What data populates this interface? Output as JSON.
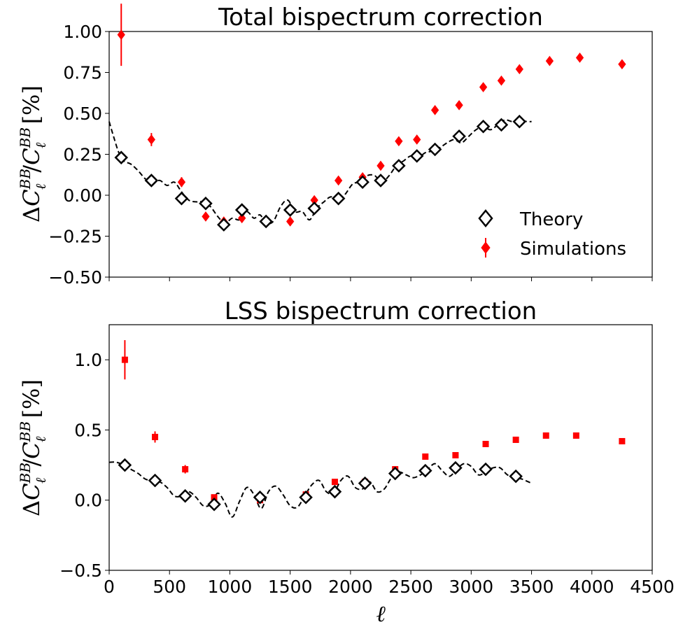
{
  "chart_data": [
    {
      "type": "scatter",
      "title": "Total bispectrum correction",
      "ylabel": "ΔC_ℓ^BB/C_ℓ^BB [%]",
      "xlabel": "",
      "xlim": [
        0,
        4500
      ],
      "ylim": [
        -0.5,
        1.0
      ],
      "xticks": [
        0,
        500,
        1000,
        1500,
        2000,
        2500,
        3000,
        3500,
        4000,
        4500
      ],
      "xtick_labels": [
        "",
        "",
        "",
        "",
        "",
        "",
        "",
        "",
        "",
        ""
      ],
      "yticks": [
        -0.5,
        -0.25,
        0.0,
        0.25,
        0.5,
        0.75,
        1.0
      ],
      "ytick_labels": [
        "−0.50",
        "−0.25",
        "0.00",
        "0.25",
        "0.50",
        "0.75",
        "1.00"
      ],
      "legend_position": "lower-right",
      "legend": [
        {
          "name": "Theory",
          "marker": "open-diamond"
        },
        {
          "name": "Simulations",
          "marker": "filled-diamond-errorbar"
        }
      ],
      "series": [
        {
          "name": "Theory",
          "x": [
            100,
            350,
            600,
            800,
            950,
            1100,
            1300,
            1500,
            1700,
            1900,
            2100,
            2250,
            2400,
            2550,
            2700,
            2900,
            3100,
            3250,
            3400
          ],
          "y": [
            0.23,
            0.09,
            -0.02,
            -0.05,
            -0.18,
            -0.09,
            -0.16,
            -0.09,
            -0.08,
            -0.02,
            0.08,
            0.09,
            0.18,
            0.24,
            0.28,
            0.36,
            0.42,
            0.43,
            0.45
          ]
        },
        {
          "name": "Simulations",
          "x": [
            100,
            350,
            600,
            800,
            950,
            1100,
            1300,
            1500,
            1700,
            1900,
            2100,
            2250,
            2400,
            2550,
            2700,
            2900,
            3100,
            3250,
            3400,
            3650,
            3900,
            4250
          ],
          "y": [
            0.98,
            0.34,
            0.08,
            -0.13,
            -0.16,
            -0.14,
            -0.16,
            -0.16,
            -0.03,
            0.09,
            0.11,
            0.18,
            0.33,
            0.34,
            0.52,
            0.55,
            0.66,
            0.7,
            0.77,
            0.82,
            0.84,
            0.8
          ],
          "yerr": [
            0.19,
            0.04,
            0.03,
            0.02,
            0.02,
            0.0,
            0.0,
            0.0,
            0.0,
            0.0,
            0.0,
            0.0,
            0.0,
            0.0,
            0.0,
            0.0,
            0.0,
            0.0,
            0.0,
            0.0,
            0.0,
            0.0
          ]
        },
        {
          "name": "Theory curve",
          "style": "dashed",
          "x": [
            0,
            40,
            80,
            120,
            180,
            240,
            300,
            360,
            420,
            480,
            540,
            600,
            660,
            720,
            780,
            840,
            900,
            960,
            1020,
            1080,
            1140,
            1200,
            1250,
            1300,
            1360,
            1420,
            1480,
            1540,
            1600,
            1660,
            1720,
            1780,
            1840,
            1900,
            1960,
            2020,
            2080,
            2140,
            2200,
            2260,
            2320,
            2380,
            2440,
            2500,
            2560,
            2620,
            2680,
            2740,
            2800,
            2860,
            2920,
            2980,
            3040,
            3100,
            3160,
            3220,
            3280,
            3340,
            3400,
            3460,
            3500
          ],
          "y": [
            0.45,
            0.35,
            0.26,
            0.21,
            0.19,
            0.15,
            0.1,
            0.08,
            0.09,
            0.06,
            0.08,
            0.02,
            -0.03,
            -0.04,
            -0.04,
            -0.07,
            -0.13,
            -0.17,
            -0.14,
            -0.15,
            -0.1,
            -0.14,
            -0.12,
            -0.17,
            -0.16,
            -0.07,
            -0.03,
            -0.1,
            -0.1,
            -0.15,
            -0.08,
            -0.04,
            -0.01,
            -0.04,
            0.01,
            0.07,
            0.08,
            0.12,
            0.12,
            0.08,
            0.12,
            0.18,
            0.21,
            0.24,
            0.23,
            0.26,
            0.27,
            0.29,
            0.32,
            0.34,
            0.32,
            0.36,
            0.4,
            0.42,
            0.4,
            0.43,
            0.46,
            0.45,
            0.46,
            0.45,
            0.45
          ]
        }
      ]
    },
    {
      "type": "scatter",
      "title": "LSS bispectrum correction",
      "ylabel": "ΔC_ℓ^BB/C_ℓ^BB [%]",
      "xlabel": "ℓ",
      "xlim": [
        0,
        4500
      ],
      "ylim": [
        -0.5,
        1.25
      ],
      "xticks": [
        0,
        500,
        1000,
        1500,
        2000,
        2500,
        3000,
        3500,
        4000,
        4500
      ],
      "xtick_labels": [
        "0",
        "500",
        "1000",
        "1500",
        "2000",
        "2500",
        "3000",
        "3500",
        "4000",
        "4500"
      ],
      "yticks": [
        -0.5,
        0.0,
        0.5,
        1.0
      ],
      "ytick_labels": [
        "−0.5",
        "0.0",
        "0.5",
        "1.0"
      ],
      "series": [
        {
          "name": "Theory",
          "x": [
            130,
            380,
            630,
            870,
            1250,
            1630,
            1870,
            2120,
            2370,
            2620,
            2870,
            3120,
            3370
          ],
          "y": [
            0.25,
            0.14,
            0.03,
            -0.03,
            0.02,
            0.02,
            0.06,
            0.12,
            0.19,
            0.21,
            0.23,
            0.22,
            0.17
          ]
        },
        {
          "name": "Simulations",
          "x": [
            130,
            380,
            630,
            870,
            1250,
            1630,
            1870,
            2120,
            2370,
            2620,
            2870,
            3120,
            3370,
            3620,
            3870,
            4250
          ],
          "y": [
            1.0,
            0.45,
            0.22,
            0.02,
            0.0,
            0.04,
            0.13,
            0.13,
            0.22,
            0.31,
            0.32,
            0.4,
            0.43,
            0.46,
            0.46,
            0.42
          ],
          "yerr": [
            0.14,
            0.04,
            0.03,
            0.02,
            0.02,
            0.0,
            0.0,
            0.0,
            0.0,
            0.0,
            0.0,
            0.0,
            0.0,
            0.0,
            0.0,
            0.0
          ]
        },
        {
          "name": "Theory curve",
          "style": "dashed",
          "x": [
            0,
            60,
            120,
            180,
            240,
            300,
            360,
            420,
            480,
            540,
            600,
            660,
            720,
            780,
            840,
            900,
            960,
            1020,
            1080,
            1140,
            1200,
            1260,
            1320,
            1380,
            1440,
            1500,
            1560,
            1620,
            1680,
            1740,
            1800,
            1860,
            1920,
            1980,
            2040,
            2100,
            2160,
            2220,
            2280,
            2340,
            2400,
            2460,
            2520,
            2580,
            2640,
            2700,
            2760,
            2820,
            2880,
            2940,
            3000,
            3060,
            3120,
            3180,
            3240,
            3300,
            3360,
            3420,
            3500
          ],
          "y": [
            0.27,
            0.27,
            0.25,
            0.22,
            0.19,
            0.15,
            0.14,
            0.13,
            0.09,
            0.03,
            0.03,
            0.06,
            0.02,
            -0.04,
            -0.03,
            0.05,
            -0.02,
            -0.12,
            -0.01,
            0.09,
            0.04,
            -0.06,
            0.06,
            0.1,
            0.04,
            -0.04,
            -0.05,
            0.03,
            0.11,
            0.14,
            0.06,
            0.05,
            0.14,
            0.17,
            0.09,
            0.08,
            0.13,
            0.06,
            0.08,
            0.16,
            0.2,
            0.18,
            0.16,
            0.18,
            0.22,
            0.26,
            0.21,
            0.17,
            0.22,
            0.26,
            0.24,
            0.18,
            0.2,
            0.23,
            0.23,
            0.18,
            0.16,
            0.15,
            0.12
          ]
        }
      ]
    }
  ]
}
